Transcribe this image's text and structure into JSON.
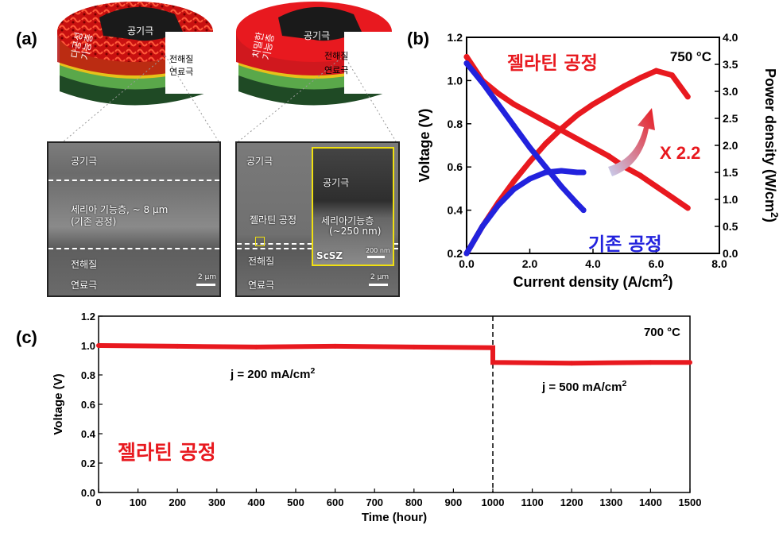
{
  "panel_labels": {
    "a": "(a)",
    "b": "(b)",
    "c": "(c)"
  },
  "panel_a": {
    "left_model": {
      "top_label": "공기극",
      "layer_label": "다공성\n기능층",
      "electrolyte_label": "전해질",
      "fuel_label": "연료극"
    },
    "right_model": {
      "top_label": "공기극",
      "layer_label": "치밀한\n기능층",
      "electrolyte_label": "전해질",
      "fuel_label": "연료극"
    },
    "left_sem": {
      "top": "공기극",
      "middle_line1": "세리아 기능층, ~ 8 μm",
      "middle_line2": "(기존 공정)",
      "electrolyte": "전해질",
      "fuel": "연료극",
      "scale": "2 μm"
    },
    "right_sem": {
      "top": "공기극",
      "middle": "젤라틴 공정",
      "electrolyte": "전해질",
      "fuel": "연료극",
      "scale": "2 μm",
      "inset_top": "공기극",
      "inset_mid_line1": "세리아기능층",
      "inset_mid_line2": "(~250 nm)",
      "inset_bottom": "ScSZ",
      "inset_scale": "200 nm"
    }
  },
  "colors": {
    "red": "#e8191f",
    "blue": "#2222dd",
    "inset_border": "#f0e010",
    "green_dark": "#1f4a25",
    "green_light": "#5aa84a",
    "yellow": "#e6c21a"
  },
  "chart_data": [
    {
      "type": "line",
      "title": "",
      "xlabel": "Current density (A/cm2)",
      "ylabel": "Voltage (V)",
      "y2label": "Power density (W/cm2)",
      "xlim": [
        0,
        8
      ],
      "ylim": [
        0.2,
        1.2
      ],
      "y2lim": [
        0,
        4
      ],
      "x_ticks": [
        "0.0",
        "2.0",
        "4.0",
        "6.0",
        "8.0"
      ],
      "y_ticks": [
        "0.2",
        "0.4",
        "0.6",
        "0.8",
        "1.0",
        "1.2"
      ],
      "y2_ticks": [
        "0.0",
        "0.5",
        "1.0",
        "1.5",
        "2.0",
        "2.5",
        "3.0",
        "3.5",
        "4.0"
      ],
      "annotations": {
        "temperature": "750 °C",
        "gelatin": "젤라틴 공정",
        "conventional": "기존 공정",
        "ratio": "X 2.2"
      },
      "series": [
        {
          "name": "젤라틴 공정",
          "color": "#e8191f",
          "axis": "left",
          "x": [
            0,
            0.5,
            1,
            1.5,
            2,
            2.5,
            3,
            3.5,
            4,
            4.5,
            5,
            5.5,
            6,
            6.5,
            7
          ],
          "y": [
            1.11,
            1.0,
            0.94,
            0.89,
            0.85,
            0.81,
            0.77,
            0.73,
            0.69,
            0.65,
            0.6,
            0.56,
            0.51,
            0.46,
            0.41
          ]
        },
        {
          "name": "젤라틴 공정",
          "color": "#e8191f",
          "axis": "right",
          "x": [
            0,
            0.5,
            1,
            1.5,
            2,
            2.5,
            3,
            3.5,
            4,
            4.5,
            5,
            5.5,
            6,
            6.5,
            7
          ],
          "y": [
            0,
            0.5,
            0.94,
            1.34,
            1.7,
            2.03,
            2.31,
            2.56,
            2.76,
            2.93,
            3.1,
            3.25,
            3.38,
            3.3,
            2.9
          ]
        },
        {
          "name": "기존 공정",
          "color": "#2222dd",
          "axis": "left",
          "x": [
            0,
            0.5,
            1,
            1.5,
            2,
            2.5,
            3,
            3.5,
            3.7
          ],
          "y": [
            1.08,
            0.99,
            0.89,
            0.79,
            0.69,
            0.6,
            0.51,
            0.43,
            0.4
          ]
        },
        {
          "name": "기존 공정",
          "color": "#2222dd",
          "axis": "right",
          "x": [
            0,
            0.5,
            1,
            1.5,
            2,
            2.5,
            3,
            3.5,
            3.7
          ],
          "y": [
            0,
            0.5,
            0.89,
            1.19,
            1.38,
            1.5,
            1.53,
            1.5,
            1.5
          ]
        }
      ]
    },
    {
      "type": "line",
      "title": "",
      "xlabel": "Time (hour)",
      "ylabel": "Voltage (V)",
      "xlim": [
        0,
        1500
      ],
      "ylim": [
        0,
        1.2
      ],
      "x_ticks": [
        "0",
        "100",
        "200",
        "300",
        "400",
        "500",
        "600",
        "700",
        "800",
        "900",
        "1000",
        "1100",
        "1200",
        "1300",
        "1400",
        "1500"
      ],
      "y_ticks": [
        "0.0",
        "0.2",
        "0.4",
        "0.6",
        "0.8",
        "1.0",
        "1.2"
      ],
      "annotations": {
        "temperature": "700 °C",
        "label": "젤라틴 공정",
        "j1": "j = 200 mA/cm2",
        "j2": "j = 500 mA/cm2",
        "switch_x": 1000
      },
      "series": [
        {
          "name": "젤라틴 공정",
          "color": "#e8191f",
          "x": [
            0,
            200,
            400,
            600,
            800,
            1000,
            1000,
            1200,
            1400,
            1500
          ],
          "y": [
            1.0,
            0.995,
            0.99,
            0.995,
            0.99,
            0.985,
            0.885,
            0.88,
            0.885,
            0.885
          ]
        }
      ]
    }
  ]
}
